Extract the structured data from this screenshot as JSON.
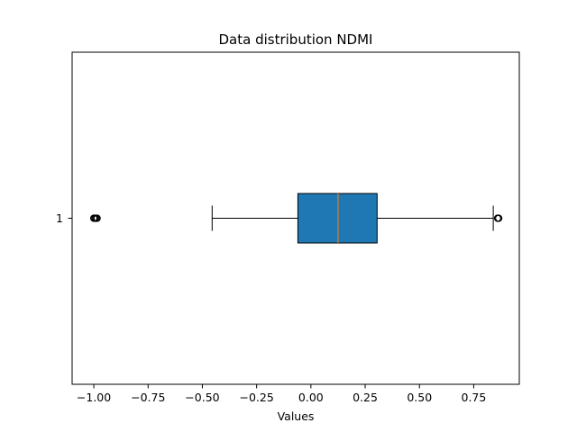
{
  "chart_data": {
    "type": "boxplot",
    "orientation": "horizontal",
    "title": "Data distribution NDMI",
    "xlabel": "Values",
    "ylabel": "",
    "xlim": [
      -1.1,
      0.96
    ],
    "xticks": [
      -1.0,
      -0.75,
      -0.5,
      -0.25,
      0.0,
      0.25,
      0.5,
      0.75
    ],
    "xtick_labels": [
      "−1.00",
      "−0.75",
      "−0.50",
      "−0.25",
      "0.00",
      "0.25",
      "0.50",
      "0.75"
    ],
    "categories": [
      "1"
    ],
    "boxes": [
      {
        "label": "1",
        "whisker_low": -0.455,
        "q1": -0.06,
        "median": 0.125,
        "q3": 0.305,
        "whisker_high": 0.84,
        "outliers_low": [
          -1.0,
          -0.995,
          -0.99,
          -0.985
        ],
        "outliers_high": [
          0.86,
          0.865
        ]
      }
    ],
    "box_color": "#1f77b4",
    "median_color": "#ff7f0e",
    "grid": false
  }
}
